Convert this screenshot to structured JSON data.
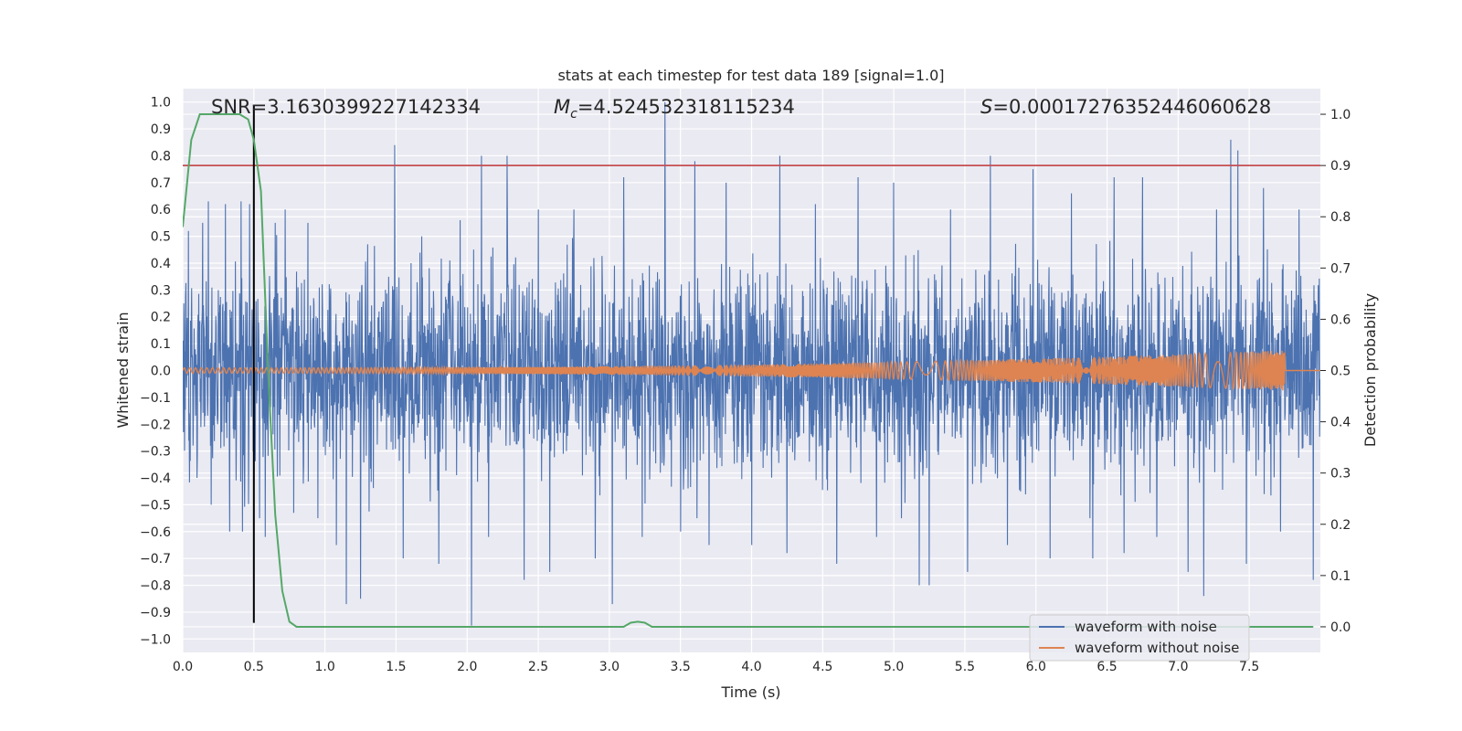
{
  "chart_data": {
    "type": "line",
    "title": "stats at each timestep for test data 189 [signal=1.0]",
    "xlabel": "Time (s)",
    "ylabel_left": "Whitened strain",
    "ylabel_right": "Detection probability",
    "xlim": [
      0.0,
      8.0
    ],
    "ylim_left": [
      -1.05,
      1.05
    ],
    "ylim_right": [
      -0.05,
      1.05
    ],
    "x_ticks": [
      "0.0",
      "0.5",
      "1.0",
      "1.5",
      "2.0",
      "2.5",
      "3.0",
      "3.5",
      "4.0",
      "4.5",
      "5.0",
      "5.5",
      "6.0",
      "6.5",
      "7.0",
      "7.5"
    ],
    "y_ticks_left": [
      "1.0",
      "0.9",
      "0.8",
      "0.7",
      "0.6",
      "0.5",
      "0.4",
      "0.3",
      "0.2",
      "0.1",
      "0.0",
      "−0.1",
      "−0.2",
      "−0.3",
      "−0.4",
      "−0.5",
      "−0.6",
      "−0.7",
      "−0.8",
      "−0.9",
      "−1.0"
    ],
    "y_ticks_right": [
      "1.0",
      "0.9",
      "0.8",
      "0.7",
      "0.6",
      "0.5",
      "0.4",
      "0.3",
      "0.2",
      "0.1",
      "0.0"
    ],
    "grid": true,
    "legend_position": "lower-right",
    "annotations": {
      "snr": "SNR=3.1630399227142334",
      "mc_symbol": "M",
      "mc_sub": "c",
      "mc_value": "=4.524532318115234",
      "s_symbol": "S",
      "s_value": "=0.00017276352446060628"
    },
    "series": [
      {
        "name": "waveform with noise",
        "color": "#4c72b0",
        "description_envelope": {
          "typical_abs": 0.4,
          "spike_peaks": [
            [
              0.04,
              0.52
            ],
            [
              0.1,
              -0.4
            ],
            [
              0.18,
              0.63
            ],
            [
              0.2,
              -0.5
            ],
            [
              0.3,
              0.62
            ],
            [
              0.33,
              -0.6
            ],
            [
              0.41,
              0.63
            ],
            [
              0.42,
              -0.6
            ],
            [
              0.47,
              0.62
            ],
            [
              0.5,
              -0.58
            ],
            [
              0.58,
              -0.62
            ],
            [
              0.65,
              0.55
            ],
            [
              0.72,
              0.6
            ],
            [
              0.78,
              -0.53
            ],
            [
              0.88,
              0.55
            ],
            [
              0.95,
              -0.55
            ],
            [
              1.08,
              -0.65
            ],
            [
              1.15,
              -0.87
            ],
            [
              1.25,
              -0.85
            ],
            [
              1.3,
              0.47
            ],
            [
              1.49,
              0.84
            ],
            [
              1.55,
              -0.7
            ],
            [
              1.68,
              0.5
            ],
            [
              1.8,
              -0.72
            ],
            [
              1.95,
              0.56
            ],
            [
              2.03,
              -0.95
            ],
            [
              2.1,
              0.8
            ],
            [
              2.15,
              -0.62
            ],
            [
              2.28,
              0.8
            ],
            [
              2.4,
              -0.78
            ],
            [
              2.5,
              0.6
            ],
            [
              2.58,
              -0.75
            ],
            [
              2.75,
              0.6
            ],
            [
              2.9,
              -0.7
            ],
            [
              3.02,
              -0.87
            ],
            [
              3.1,
              0.72
            ],
            [
              3.23,
              -0.62
            ],
            [
              3.39,
              1.0
            ],
            [
              3.5,
              -0.6
            ],
            [
              3.6,
              0.78
            ],
            [
              3.7,
              -0.65
            ],
            [
              3.82,
              0.7
            ],
            [
              4.0,
              -0.65
            ],
            [
              4.2,
              0.8
            ],
            [
              4.25,
              -0.68
            ],
            [
              4.45,
              0.62
            ],
            [
              4.6,
              -0.72
            ],
            [
              4.75,
              0.72
            ],
            [
              4.88,
              -0.62
            ],
            [
              5.0,
              0.7
            ],
            [
              5.18,
              -0.8
            ],
            [
              5.25,
              -0.8
            ],
            [
              5.4,
              0.6
            ],
            [
              5.52,
              -0.75
            ],
            [
              5.68,
              0.8
            ],
            [
              5.8,
              -0.65
            ],
            [
              5.98,
              0.75
            ],
            [
              6.1,
              -0.7
            ],
            [
              6.25,
              0.66
            ],
            [
              6.4,
              -0.7
            ],
            [
              6.55,
              0.72
            ],
            [
              6.62,
              -0.68
            ],
            [
              6.75,
              0.72
            ],
            [
              6.85,
              -0.62
            ],
            [
              7.07,
              -0.75
            ],
            [
              7.18,
              -0.84
            ],
            [
              7.27,
              0.6
            ],
            [
              7.37,
              0.86
            ],
            [
              7.42,
              0.82
            ],
            [
              7.48,
              -0.72
            ],
            [
              7.6,
              0.68
            ],
            [
              7.72,
              -0.6
            ],
            [
              7.85,
              0.6
            ],
            [
              7.95,
              -0.78
            ]
          ]
        }
      },
      {
        "name": "waveform without noise",
        "color": "#dd8452",
        "chirp": {
          "amp_start": 0.01,
          "amp_end": 0.075,
          "end_time": 7.75
        }
      },
      {
        "name": "detection probability",
        "axis": "right",
        "color": "#55a868",
        "x": [
          0.0,
          0.06,
          0.12,
          0.2,
          0.3,
          0.4,
          0.46,
          0.5,
          0.55,
          0.6,
          0.65,
          0.7,
          0.75,
          0.8,
          1.0,
          2.0,
          3.0,
          3.1,
          3.15,
          3.2,
          3.25,
          3.3,
          3.4,
          4.0,
          5.0,
          6.0,
          7.0,
          7.95
        ],
        "y": [
          0.78,
          0.95,
          1.0,
          1.0,
          1.0,
          1.0,
          0.99,
          0.95,
          0.85,
          0.5,
          0.22,
          0.07,
          0.01,
          0.0,
          0.0,
          0.0,
          0.0,
          0.0,
          0.008,
          0.01,
          0.008,
          0.0,
          0.0,
          0.0,
          0.0,
          0.0,
          0.0,
          0.0
        ]
      }
    ],
    "threshold": {
      "axis": "right",
      "value": 0.9,
      "color": "#c44e52"
    },
    "marker_time": {
      "value": 0.5,
      "color": "#000000"
    }
  }
}
